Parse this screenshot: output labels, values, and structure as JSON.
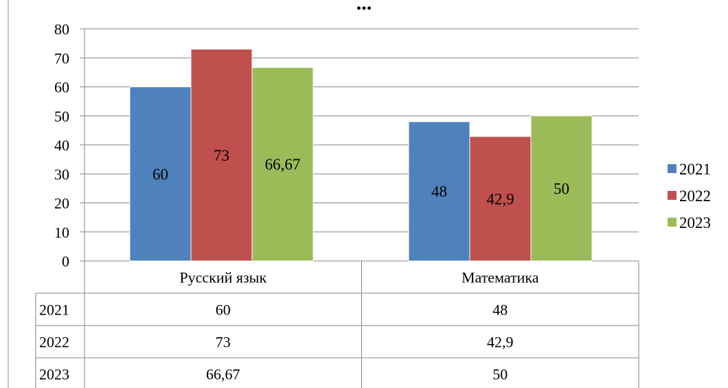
{
  "chart_data": {
    "type": "bar",
    "title": "...",
    "categories": [
      "Русский язык",
      "Математика"
    ],
    "series": [
      {
        "name": "2021",
        "values": [
          60,
          48
        ],
        "labels": [
          "60",
          "48"
        ],
        "color": "#4F81BD"
      },
      {
        "name": "2022",
        "values": [
          73,
          42.9
        ],
        "labels": [
          "73",
          "42,9"
        ],
        "color": "#C0504D"
      },
      {
        "name": "2023",
        "values": [
          66.67,
          50
        ],
        "labels": [
          "66,67",
          "50"
        ],
        "color": "#9BBB59"
      }
    ],
    "ylim": [
      0,
      80
    ],
    "yticks": [
      "0",
      "10",
      "20",
      "30",
      "40",
      "50",
      "60",
      "70",
      "80"
    ],
    "grid": true,
    "legend_position": "right",
    "data_table": true
  }
}
